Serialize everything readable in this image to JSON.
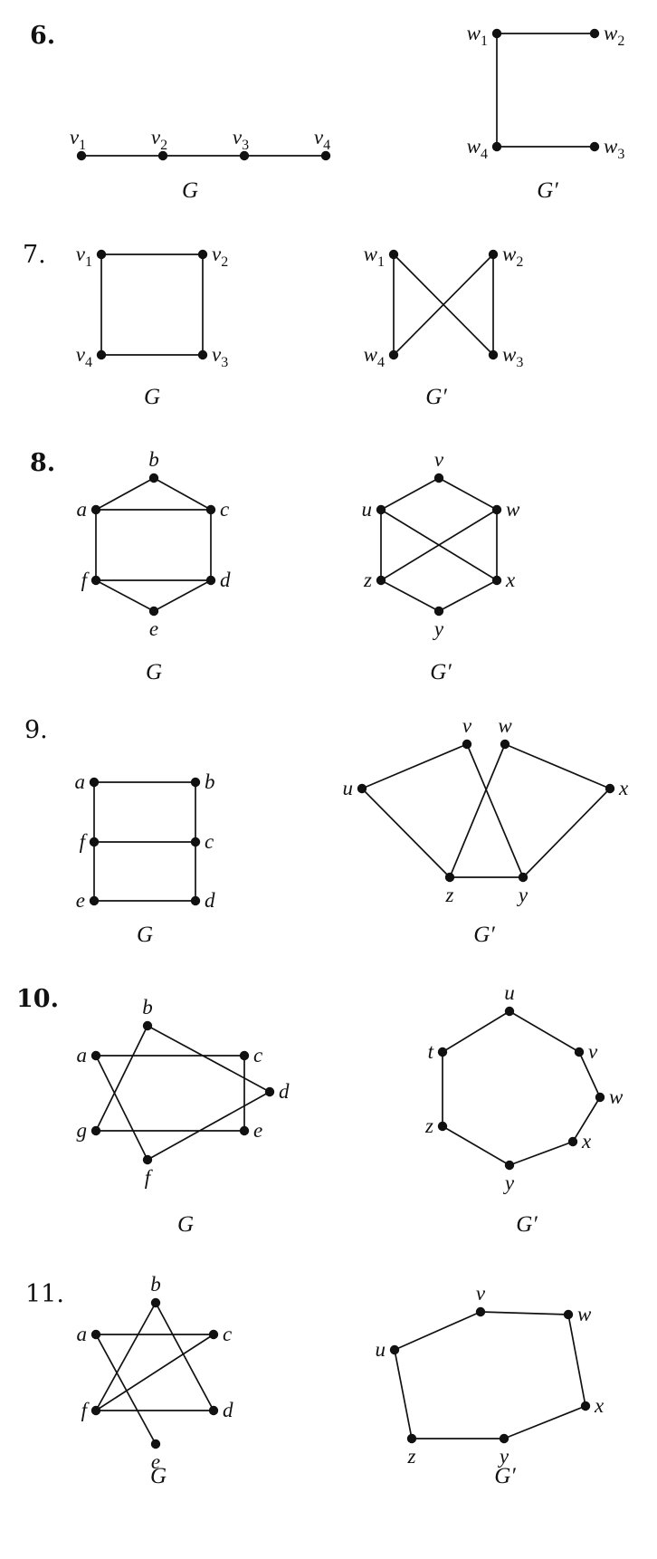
{
  "problems": [
    {
      "number": "6.",
      "bold": true,
      "graphs": [
        {
          "caption": "G",
          "vertices": [
            {
              "id": "v1",
              "name": "v",
              "sub": "1"
            },
            {
              "id": "v2",
              "name": "v",
              "sub": "2"
            },
            {
              "id": "v3",
              "name": "v",
              "sub": "3"
            },
            {
              "id": "v4",
              "name": "v",
              "sub": "4"
            }
          ],
          "edges": [
            [
              "v1",
              "v2"
            ],
            [
              "v2",
              "v3"
            ],
            [
              "v3",
              "v4"
            ]
          ]
        },
        {
          "caption": "G′",
          "vertices": [
            {
              "id": "w1",
              "name": "w",
              "sub": "1"
            },
            {
              "id": "w2",
              "name": "w",
              "sub": "2"
            },
            {
              "id": "w4",
              "name": "w",
              "sub": "4"
            },
            {
              "id": "w3",
              "name": "w",
              "sub": "3"
            }
          ],
          "edges": [
            [
              "w1",
              "w2"
            ],
            [
              "w1",
              "w4"
            ],
            [
              "w4",
              "w3"
            ]
          ]
        }
      ]
    },
    {
      "number": "7.",
      "bold": false,
      "graphs": [
        {
          "caption": "G",
          "vertices": [
            {
              "id": "v1",
              "name": "v",
              "sub": "1"
            },
            {
              "id": "v2",
              "name": "v",
              "sub": "2"
            },
            {
              "id": "v4",
              "name": "v",
              "sub": "4"
            },
            {
              "id": "v3",
              "name": "v",
              "sub": "3"
            }
          ],
          "edges": [
            [
              "v1",
              "v2"
            ],
            [
              "v2",
              "v3"
            ],
            [
              "v3",
              "v4"
            ],
            [
              "v4",
              "v1"
            ]
          ]
        },
        {
          "caption": "G′",
          "vertices": [
            {
              "id": "w1",
              "name": "w",
              "sub": "1"
            },
            {
              "id": "w2",
              "name": "w",
              "sub": "2"
            },
            {
              "id": "w4",
              "name": "w",
              "sub": "4"
            },
            {
              "id": "w3",
              "name": "w",
              "sub": "3"
            }
          ],
          "edges": [
            [
              "w1",
              "w4"
            ],
            [
              "w2",
              "w3"
            ],
            [
              "w1",
              "w3"
            ],
            [
              "w2",
              "w4"
            ]
          ]
        }
      ]
    },
    {
      "number": "8.",
      "bold": true,
      "graphs": [
        {
          "caption": "G",
          "vertices": [
            {
              "id": "b",
              "name": "b"
            },
            {
              "id": "a",
              "name": "a"
            },
            {
              "id": "c",
              "name": "c"
            },
            {
              "id": "f",
              "name": "f"
            },
            {
              "id": "d",
              "name": "d"
            },
            {
              "id": "e",
              "name": "e"
            }
          ],
          "edges": [
            [
              "a",
              "b"
            ],
            [
              "b",
              "c"
            ],
            [
              "a",
              "c"
            ],
            [
              "a",
              "f"
            ],
            [
              "c",
              "d"
            ],
            [
              "f",
              "d"
            ],
            [
              "f",
              "e"
            ],
            [
              "e",
              "d"
            ]
          ]
        },
        {
          "caption": "G′",
          "vertices": [
            {
              "id": "v",
              "name": "v"
            },
            {
              "id": "u",
              "name": "u"
            },
            {
              "id": "w",
              "name": "w"
            },
            {
              "id": "z",
              "name": "z"
            },
            {
              "id": "x",
              "name": "x"
            },
            {
              "id": "y",
              "name": "y"
            }
          ],
          "edges": [
            [
              "u",
              "v"
            ],
            [
              "v",
              "w"
            ],
            [
              "u",
              "z"
            ],
            [
              "w",
              "x"
            ],
            [
              "u",
              "x"
            ],
            [
              "w",
              "z"
            ],
            [
              "z",
              "y"
            ],
            [
              "y",
              "x"
            ]
          ]
        }
      ]
    },
    {
      "number": "9.",
      "bold": false,
      "graphs": [
        {
          "caption": "G",
          "vertices": [
            {
              "id": "a",
              "name": "a"
            },
            {
              "id": "b",
              "name": "b"
            },
            {
              "id": "f",
              "name": "f"
            },
            {
              "id": "c",
              "name": "c"
            },
            {
              "id": "e",
              "name": "e"
            },
            {
              "id": "d",
              "name": "d"
            }
          ],
          "edges": [
            [
              "a",
              "b"
            ],
            [
              "a",
              "f"
            ],
            [
              "b",
              "c"
            ],
            [
              "f",
              "c"
            ],
            [
              "f",
              "e"
            ],
            [
              "c",
              "d"
            ],
            [
              "e",
              "d"
            ]
          ]
        },
        {
          "caption": "G′",
          "vertices": [
            {
              "id": "v",
              "name": "v"
            },
            {
              "id": "w",
              "name": "w"
            },
            {
              "id": "u",
              "name": "u"
            },
            {
              "id": "x",
              "name": "x"
            },
            {
              "id": "z",
              "name": "z"
            },
            {
              "id": "y",
              "name": "y"
            }
          ],
          "edges": [
            [
              "u",
              "v"
            ],
            [
              "u",
              "z"
            ],
            [
              "v",
              "y"
            ],
            [
              "w",
              "z"
            ],
            [
              "w",
              "x"
            ],
            [
              "x",
              "y"
            ],
            [
              "z",
              "y"
            ]
          ]
        }
      ]
    },
    {
      "number": "10.",
      "bold": true,
      "graphs": [
        {
          "caption": "G",
          "vertices": [
            {
              "id": "b",
              "name": "b"
            },
            {
              "id": "a",
              "name": "a"
            },
            {
              "id": "c",
              "name": "c"
            },
            {
              "id": "d",
              "name": "d"
            },
            {
              "id": "g",
              "name": "g"
            },
            {
              "id": "e",
              "name": "e"
            },
            {
              "id": "f",
              "name": "f"
            }
          ],
          "edges": [
            [
              "a",
              "c"
            ],
            [
              "c",
              "e"
            ],
            [
              "g",
              "e"
            ],
            [
              "a",
              "f"
            ],
            [
              "b",
              "g"
            ],
            [
              "b",
              "d"
            ],
            [
              "f",
              "d"
            ]
          ]
        },
        {
          "caption": "G′",
          "vertices": [
            {
              "id": "u",
              "name": "u"
            },
            {
              "id": "t",
              "name": "t"
            },
            {
              "id": "v",
              "name": "v"
            },
            {
              "id": "w",
              "name": "w"
            },
            {
              "id": "z",
              "name": "z"
            },
            {
              "id": "x",
              "name": "x"
            },
            {
              "id": "y",
              "name": "y"
            }
          ],
          "edges": [
            [
              "t",
              "u"
            ],
            [
              "u",
              "v"
            ],
            [
              "v",
              "w"
            ],
            [
              "w",
              "x"
            ],
            [
              "x",
              "y"
            ],
            [
              "y",
              "z"
            ],
            [
              "z",
              "t"
            ]
          ]
        }
      ]
    },
    {
      "number": "11.",
      "bold": false,
      "graphs": [
        {
          "caption": "G",
          "vertices": [
            {
              "id": "b",
              "name": "b"
            },
            {
              "id": "a",
              "name": "a"
            },
            {
              "id": "c",
              "name": "c"
            },
            {
              "id": "f",
              "name": "f"
            },
            {
              "id": "d",
              "name": "d"
            },
            {
              "id": "e",
              "name": "e"
            }
          ],
          "edges": [
            [
              "a",
              "c"
            ],
            [
              "f",
              "d"
            ],
            [
              "a",
              "e"
            ],
            [
              "c",
              "f"
            ],
            [
              "b",
              "f"
            ],
            [
              "b",
              "d"
            ]
          ]
        },
        {
          "caption": "G′",
          "vertices": [
            {
              "id": "v",
              "name": "v"
            },
            {
              "id": "w",
              "name": "w"
            },
            {
              "id": "u",
              "name": "u"
            },
            {
              "id": "x",
              "name": "x"
            },
            {
              "id": "z",
              "name": "z"
            },
            {
              "id": "y",
              "name": "y"
            }
          ],
          "edges": [
            [
              "u",
              "v"
            ],
            [
              "v",
              "w"
            ],
            [
              "w",
              "x"
            ],
            [
              "x",
              "y"
            ],
            [
              "y",
              "z"
            ],
            [
              "z",
              "u"
            ]
          ]
        }
      ]
    }
  ]
}
